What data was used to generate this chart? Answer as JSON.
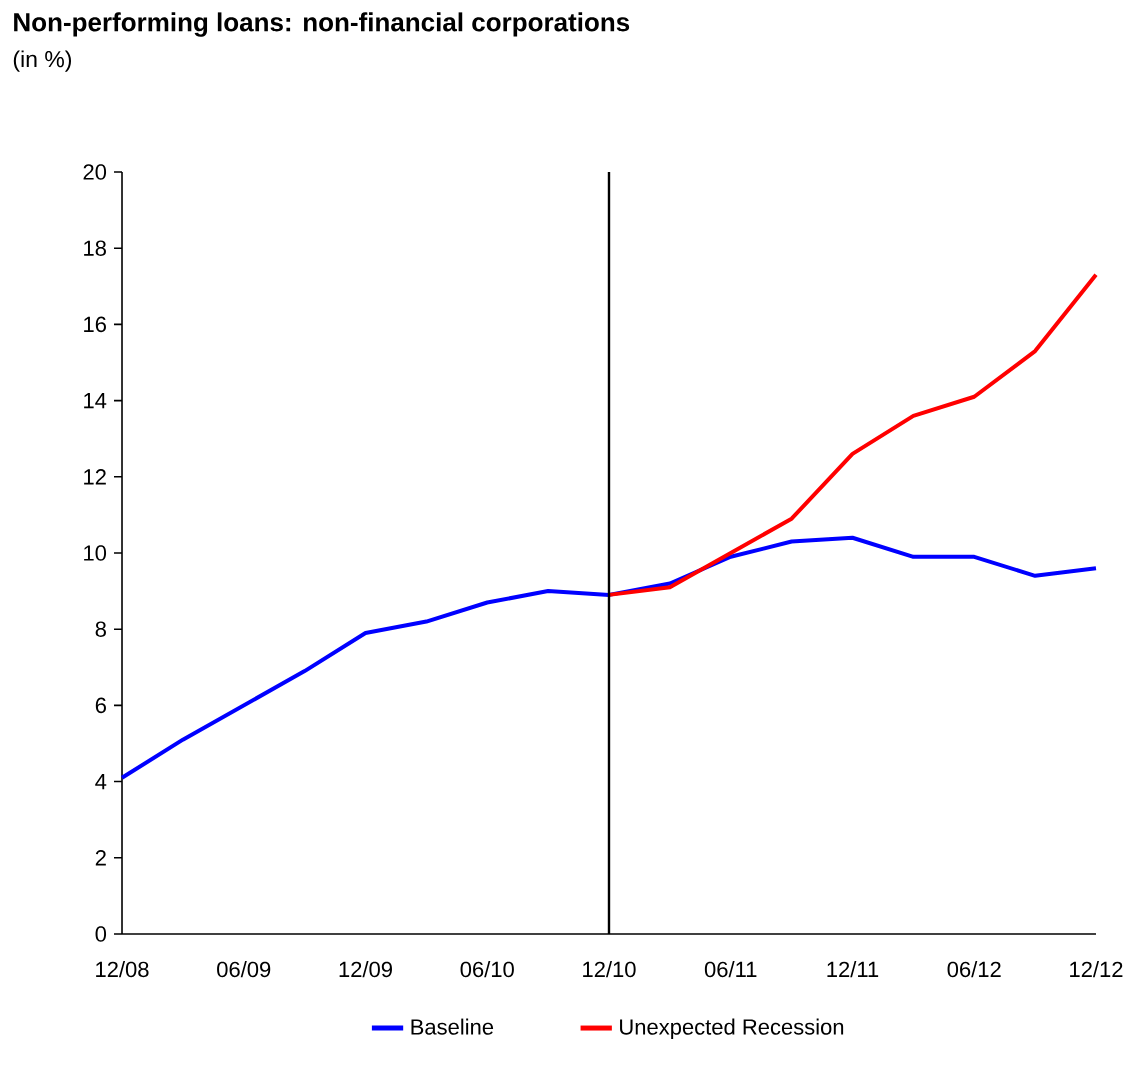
{
  "chart_data": {
    "type": "line",
    "title": "Non-performing loans: non-financial corporations",
    "subtitle": "(in %)",
    "categories": [
      "12/08",
      null,
      "06/09",
      null,
      "12/09",
      null,
      "06/10",
      null,
      "12/10",
      null,
      "06/11",
      null,
      "12/11",
      null,
      "06/12",
      null,
      "12/12"
    ],
    "series": [
      {
        "name": "Baseline",
        "color": "#0000ff",
        "values": [
          4.1,
          5.1,
          6.0,
          6.9,
          7.9,
          8.2,
          8.7,
          9.0,
          8.9,
          9.2,
          9.9,
          10.3,
          10.4,
          9.9,
          9.9,
          9.4,
          9.6
        ]
      },
      {
        "name": "Unexpected Recession",
        "color": "#ff0000",
        "values": [
          null,
          null,
          null,
          null,
          null,
          null,
          null,
          null,
          8.9,
          9.1,
          10.0,
          10.9,
          12.6,
          13.6,
          14.1,
          15.3,
          17.3
        ]
      }
    ],
    "ylim": [
      0,
      20
    ],
    "yticks": [
      0,
      2,
      4,
      6,
      8,
      10,
      12,
      14,
      16,
      18,
      20
    ],
    "ref_lines": [
      {
        "axis": "x",
        "value": "12/10",
        "color": "#000000"
      }
    ],
    "legend": "bottom",
    "grid": false,
    "marker": "none",
    "line_style": "solid"
  }
}
